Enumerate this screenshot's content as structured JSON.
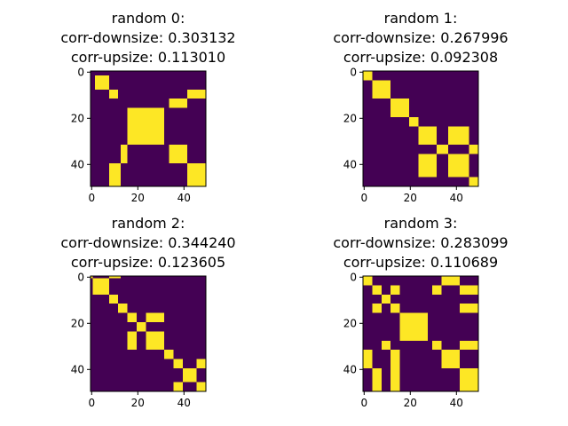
{
  "colors": {
    "background": "#440154",
    "foreground": "#fde725",
    "axis": "#000000"
  },
  "chart_data": [
    {
      "type": "heatmap",
      "title_lines": [
        "random 0:",
        "corr-downsize: 0.303132",
        "corr-upsize: 0.113010"
      ],
      "size": 50,
      "xlim": [
        0,
        50
      ],
      "ylim": [
        0,
        50
      ],
      "y_inverted": true,
      "xticks": [
        0,
        20,
        40
      ],
      "yticks": [
        0,
        20,
        40
      ],
      "colormap": "viridis",
      "value_range": [
        0,
        1
      ],
      "yellow_blocks": [
        {
          "rows": [
            2,
            8
          ],
          "cols": [
            2,
            8
          ]
        },
        {
          "rows": [
            8,
            12
          ],
          "cols": [
            8,
            12
          ]
        },
        {
          "rows": [
            8,
            12
          ],
          "cols": [
            42,
            50
          ]
        },
        {
          "rows": [
            12,
            16
          ],
          "cols": [
            34,
            42
          ]
        },
        {
          "rows": [
            16,
            32
          ],
          "cols": [
            16,
            32
          ]
        },
        {
          "rows": [
            32,
            40
          ],
          "cols": [
            13,
            16
          ]
        },
        {
          "rows": [
            32,
            40
          ],
          "cols": [
            34,
            42
          ]
        },
        {
          "rows": [
            40,
            50
          ],
          "cols": [
            8,
            13
          ]
        },
        {
          "rows": [
            40,
            50
          ],
          "cols": [
            42,
            50
          ]
        }
      ]
    },
    {
      "type": "heatmap",
      "title_lines": [
        "random 1:",
        "corr-downsize: 0.267996",
        "corr-upsize: 0.092308"
      ],
      "size": 50,
      "xlim": [
        0,
        50
      ],
      "ylim": [
        0,
        50
      ],
      "y_inverted": true,
      "xticks": [
        0,
        20,
        40
      ],
      "yticks": [
        0,
        20,
        40
      ],
      "colormap": "viridis",
      "value_range": [
        0,
        1
      ],
      "yellow_blocks": [
        {
          "rows": [
            0,
            4
          ],
          "cols": [
            0,
            4
          ]
        },
        {
          "rows": [
            4,
            12
          ],
          "cols": [
            4,
            12
          ]
        },
        {
          "rows": [
            12,
            20
          ],
          "cols": [
            12,
            20
          ]
        },
        {
          "rows": [
            20,
            24
          ],
          "cols": [
            20,
            24
          ]
        },
        {
          "rows": [
            24,
            32
          ],
          "cols": [
            24,
            32
          ]
        },
        {
          "rows": [
            24,
            32
          ],
          "cols": [
            37,
            46
          ]
        },
        {
          "rows": [
            32,
            36
          ],
          "cols": [
            32,
            37
          ]
        },
        {
          "rows": [
            32,
            36
          ],
          "cols": [
            46,
            50
          ]
        },
        {
          "rows": [
            36,
            46
          ],
          "cols": [
            24,
            32
          ]
        },
        {
          "rows": [
            36,
            46
          ],
          "cols": [
            37,
            46
          ]
        },
        {
          "rows": [
            46,
            50
          ],
          "cols": [
            46,
            50
          ]
        }
      ]
    },
    {
      "type": "heatmap",
      "title_lines": [
        "random 2:",
        "corr-downsize: 0.344240",
        "corr-upsize: 0.123605"
      ],
      "size": 50,
      "xlim": [
        0,
        50
      ],
      "ylim": [
        0,
        50
      ],
      "y_inverted": true,
      "xticks": [
        0,
        20,
        40
      ],
      "yticks": [
        0,
        20,
        40
      ],
      "colormap": "viridis",
      "value_range": [
        0,
        1
      ],
      "yellow_blocks": [
        {
          "rows": [
            0,
            1
          ],
          "cols": [
            0,
            1
          ]
        },
        {
          "rows": [
            0,
            1
          ],
          "cols": [
            8,
            13
          ]
        },
        {
          "rows": [
            1,
            8
          ],
          "cols": [
            1,
            8
          ]
        },
        {
          "rows": [
            8,
            12
          ],
          "cols": [
            8,
            12
          ]
        },
        {
          "rows": [
            12,
            16
          ],
          "cols": [
            12,
            16
          ]
        },
        {
          "rows": [
            16,
            20
          ],
          "cols": [
            16,
            20
          ]
        },
        {
          "rows": [
            16,
            20
          ],
          "cols": [
            24,
            32
          ]
        },
        {
          "rows": [
            20,
            24
          ],
          "cols": [
            20,
            24
          ]
        },
        {
          "rows": [
            24,
            32
          ],
          "cols": [
            16,
            20
          ]
        },
        {
          "rows": [
            24,
            32
          ],
          "cols": [
            24,
            32
          ]
        },
        {
          "rows": [
            32,
            36
          ],
          "cols": [
            32,
            36
          ]
        },
        {
          "rows": [
            36,
            40
          ],
          "cols": [
            36,
            40
          ]
        },
        {
          "rows": [
            36,
            40
          ],
          "cols": [
            46,
            50
          ]
        },
        {
          "rows": [
            40,
            46
          ],
          "cols": [
            40,
            46
          ]
        },
        {
          "rows": [
            46,
            50
          ],
          "cols": [
            36,
            40
          ]
        },
        {
          "rows": [
            46,
            50
          ],
          "cols": [
            46,
            50
          ]
        }
      ]
    },
    {
      "type": "heatmap",
      "title_lines": [
        "random 3:",
        "corr-downsize: 0.283099",
        "corr-upsize: 0.110689"
      ],
      "size": 50,
      "xlim": [
        0,
        50
      ],
      "ylim": [
        0,
        50
      ],
      "y_inverted": true,
      "xticks": [
        0,
        20,
        40
      ],
      "yticks": [
        0,
        20,
        40
      ],
      "colormap": "viridis",
      "value_range": [
        0,
        1
      ],
      "yellow_blocks": [
        {
          "rows": [
            0,
            4
          ],
          "cols": [
            0,
            4
          ]
        },
        {
          "rows": [
            0,
            4
          ],
          "cols": [
            34,
            42
          ]
        },
        {
          "rows": [
            4,
            8
          ],
          "cols": [
            4,
            8
          ]
        },
        {
          "rows": [
            4,
            8
          ],
          "cols": [
            12,
            16
          ]
        },
        {
          "rows": [
            4,
            8
          ],
          "cols": [
            30,
            34
          ]
        },
        {
          "rows": [
            4,
            8
          ],
          "cols": [
            42,
            50
          ]
        },
        {
          "rows": [
            8,
            12
          ],
          "cols": [
            8,
            12
          ]
        },
        {
          "rows": [
            12,
            16
          ],
          "cols": [
            4,
            8
          ]
        },
        {
          "rows": [
            12,
            16
          ],
          "cols": [
            12,
            16
          ]
        },
        {
          "rows": [
            12,
            16
          ],
          "cols": [
            42,
            50
          ]
        },
        {
          "rows": [
            16,
            28
          ],
          "cols": [
            16,
            28
          ]
        },
        {
          "rows": [
            28,
            32
          ],
          "cols": [
            8,
            12
          ]
        },
        {
          "rows": [
            28,
            32
          ],
          "cols": [
            30,
            34
          ]
        },
        {
          "rows": [
            28,
            32
          ],
          "cols": [
            42,
            50
          ]
        },
        {
          "rows": [
            32,
            40
          ],
          "cols": [
            0,
            4
          ]
        },
        {
          "rows": [
            32,
            40
          ],
          "cols": [
            12,
            16
          ]
        },
        {
          "rows": [
            32,
            40
          ],
          "cols": [
            34,
            42
          ]
        },
        {
          "rows": [
            40,
            50
          ],
          "cols": [
            4,
            8
          ]
        },
        {
          "rows": [
            40,
            50
          ],
          "cols": [
            12,
            16
          ]
        },
        {
          "rows": [
            40,
            50
          ],
          "cols": [
            42,
            50
          ]
        }
      ]
    }
  ]
}
